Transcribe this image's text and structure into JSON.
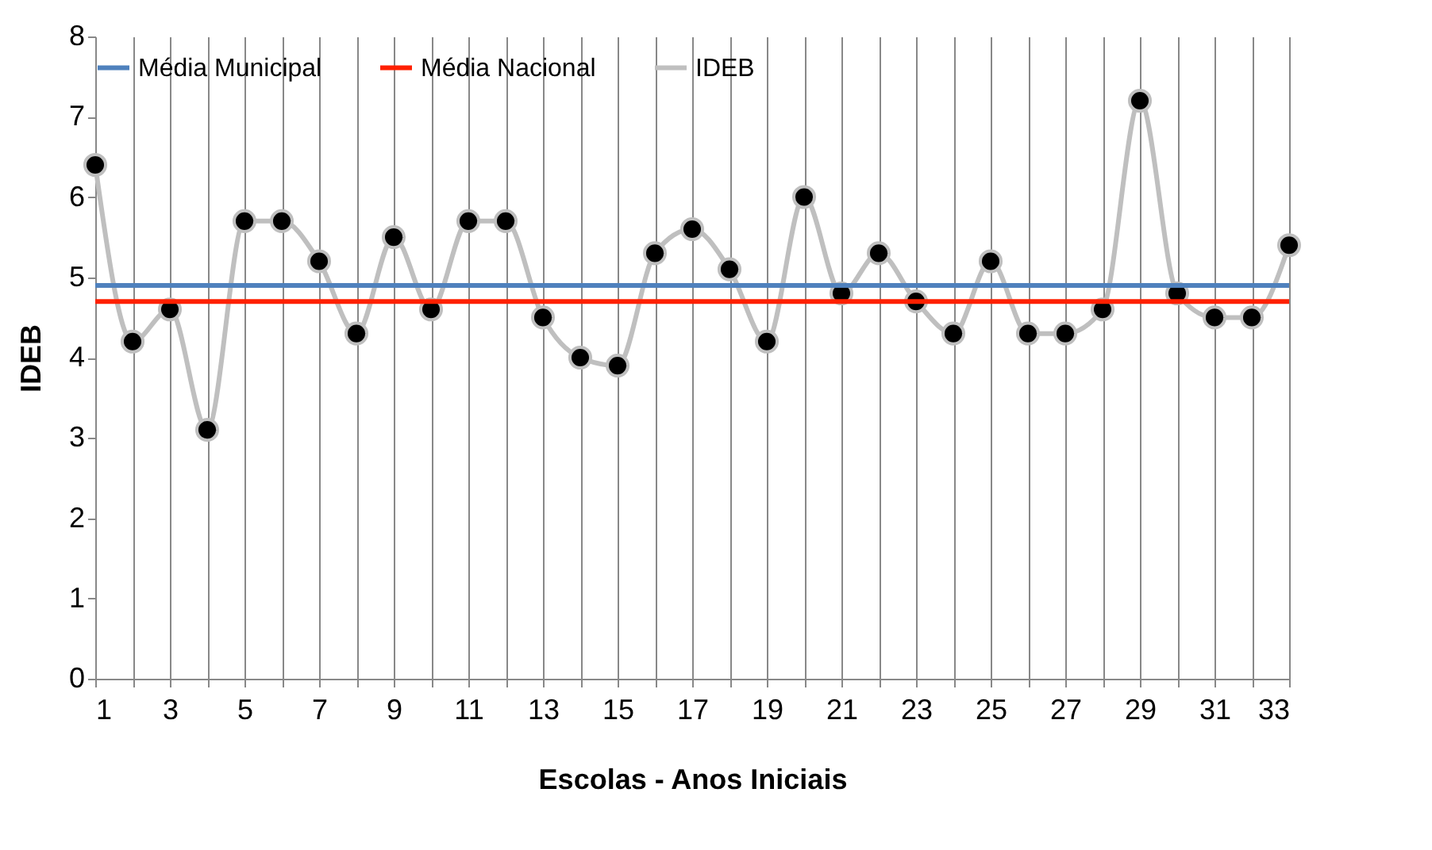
{
  "chart_data": {
    "type": "line",
    "xlabel": "Escolas - Anos Iniciais",
    "ylabel": "IDEB",
    "x": [
      1,
      2,
      3,
      4,
      5,
      6,
      7,
      8,
      9,
      10,
      11,
      12,
      13,
      14,
      15,
      16,
      17,
      18,
      19,
      20,
      21,
      22,
      23,
      24,
      25,
      26,
      27,
      28,
      29,
      30,
      31,
      32,
      33
    ],
    "ref_lines": [
      {
        "axis": "y",
        "value": 4.9,
        "label": "Média Municipal",
        "color": "#4f81bd"
      },
      {
        "axis": "y",
        "value": 4.7,
        "label": "Média Nacional",
        "color": "#ff2000"
      }
    ],
    "series": [
      {
        "name": "IDEB",
        "color": "#bfbfbf",
        "marker": "circle",
        "values": [
          6.4,
          4.2,
          4.6,
          3.1,
          5.7,
          5.7,
          5.2,
          4.3,
          5.5,
          4.6,
          5.7,
          5.7,
          4.5,
          4.0,
          3.9,
          5.3,
          5.6,
          5.1,
          4.2,
          6.0,
          4.8,
          5.3,
          4.7,
          4.3,
          5.2,
          4.3,
          4.3,
          4.6,
          7.2,
          4.8,
          4.5,
          4.5,
          5.4
        ]
      }
    ],
    "xlim": [
      1,
      33
    ],
    "ylim": [
      0,
      8
    ],
    "xticks": [
      1,
      {
        "value": 2,
        "label": null
      },
      3,
      {
        "value": 4,
        "label": null
      },
      5,
      {
        "value": 6,
        "label": null
      },
      7,
      {
        "value": 8,
        "label": null
      },
      9,
      {
        "value": 10,
        "label": null
      },
      11,
      {
        "value": 12,
        "label": null
      },
      13,
      {
        "value": 14,
        "label": null
      },
      15,
      {
        "value": 16,
        "label": null
      },
      17,
      {
        "value": 18,
        "label": null
      },
      19,
      {
        "value": 20,
        "label": null
      },
      21,
      {
        "value": 22,
        "label": null
      },
      23,
      {
        "value": 24,
        "label": null
      },
      25,
      {
        "value": 26,
        "label": null
      },
      27,
      {
        "value": 28,
        "label": null
      },
      29,
      {
        "value": 30,
        "label": null
      },
      31,
      {
        "value": 32,
        "label": null
      },
      33
    ],
    "yticks": [
      0,
      1,
      2,
      3,
      4,
      5,
      6,
      7,
      8
    ],
    "grid": "x",
    "legend": "top"
  }
}
